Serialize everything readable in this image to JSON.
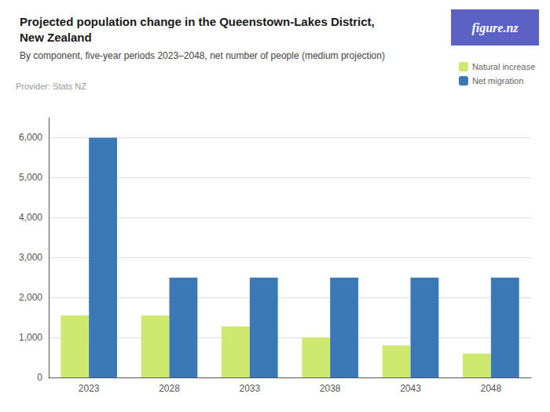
{
  "chart_data": {
    "type": "bar",
    "title": "Projected population change in the Queenstown-Lakes District,\nNew Zealand",
    "subtitle": "By component, five-year periods 2023–2048, net number of people (medium projection)",
    "annotations": [
      {
        "text": "Provider: Stats NZ"
      },
      {
        "text": "figure.nz",
        "color": "#5b62c4"
      }
    ],
    "categories": [
      "2023",
      "2028",
      "2033",
      "2038",
      "2043",
      "2048"
    ],
    "series": [
      {
        "name": "Natural increase",
        "color": "#cde96e",
        "values": [
          1550,
          1550,
          1275,
          1000,
          800,
          600
        ]
      },
      {
        "name": "Net migration",
        "color": "#3b78b8",
        "values": [
          6000,
          2500,
          2500,
          2500,
          2500,
          2500
        ]
      }
    ],
    "ylim": [
      0,
      6500
    ],
    "yticks": [
      0,
      {
        "value": 1000,
        "label": "1,000"
      },
      {
        "value": 2000,
        "label": "2,000"
      },
      {
        "value": 3000,
        "label": "3,000"
      },
      {
        "value": 4000,
        "label": "4,000"
      },
      {
        "value": 5000,
        "label": "5,000"
      },
      {
        "value": 6000,
        "label": "6,000"
      }
    ],
    "grid": true,
    "legend": "upper right"
  }
}
